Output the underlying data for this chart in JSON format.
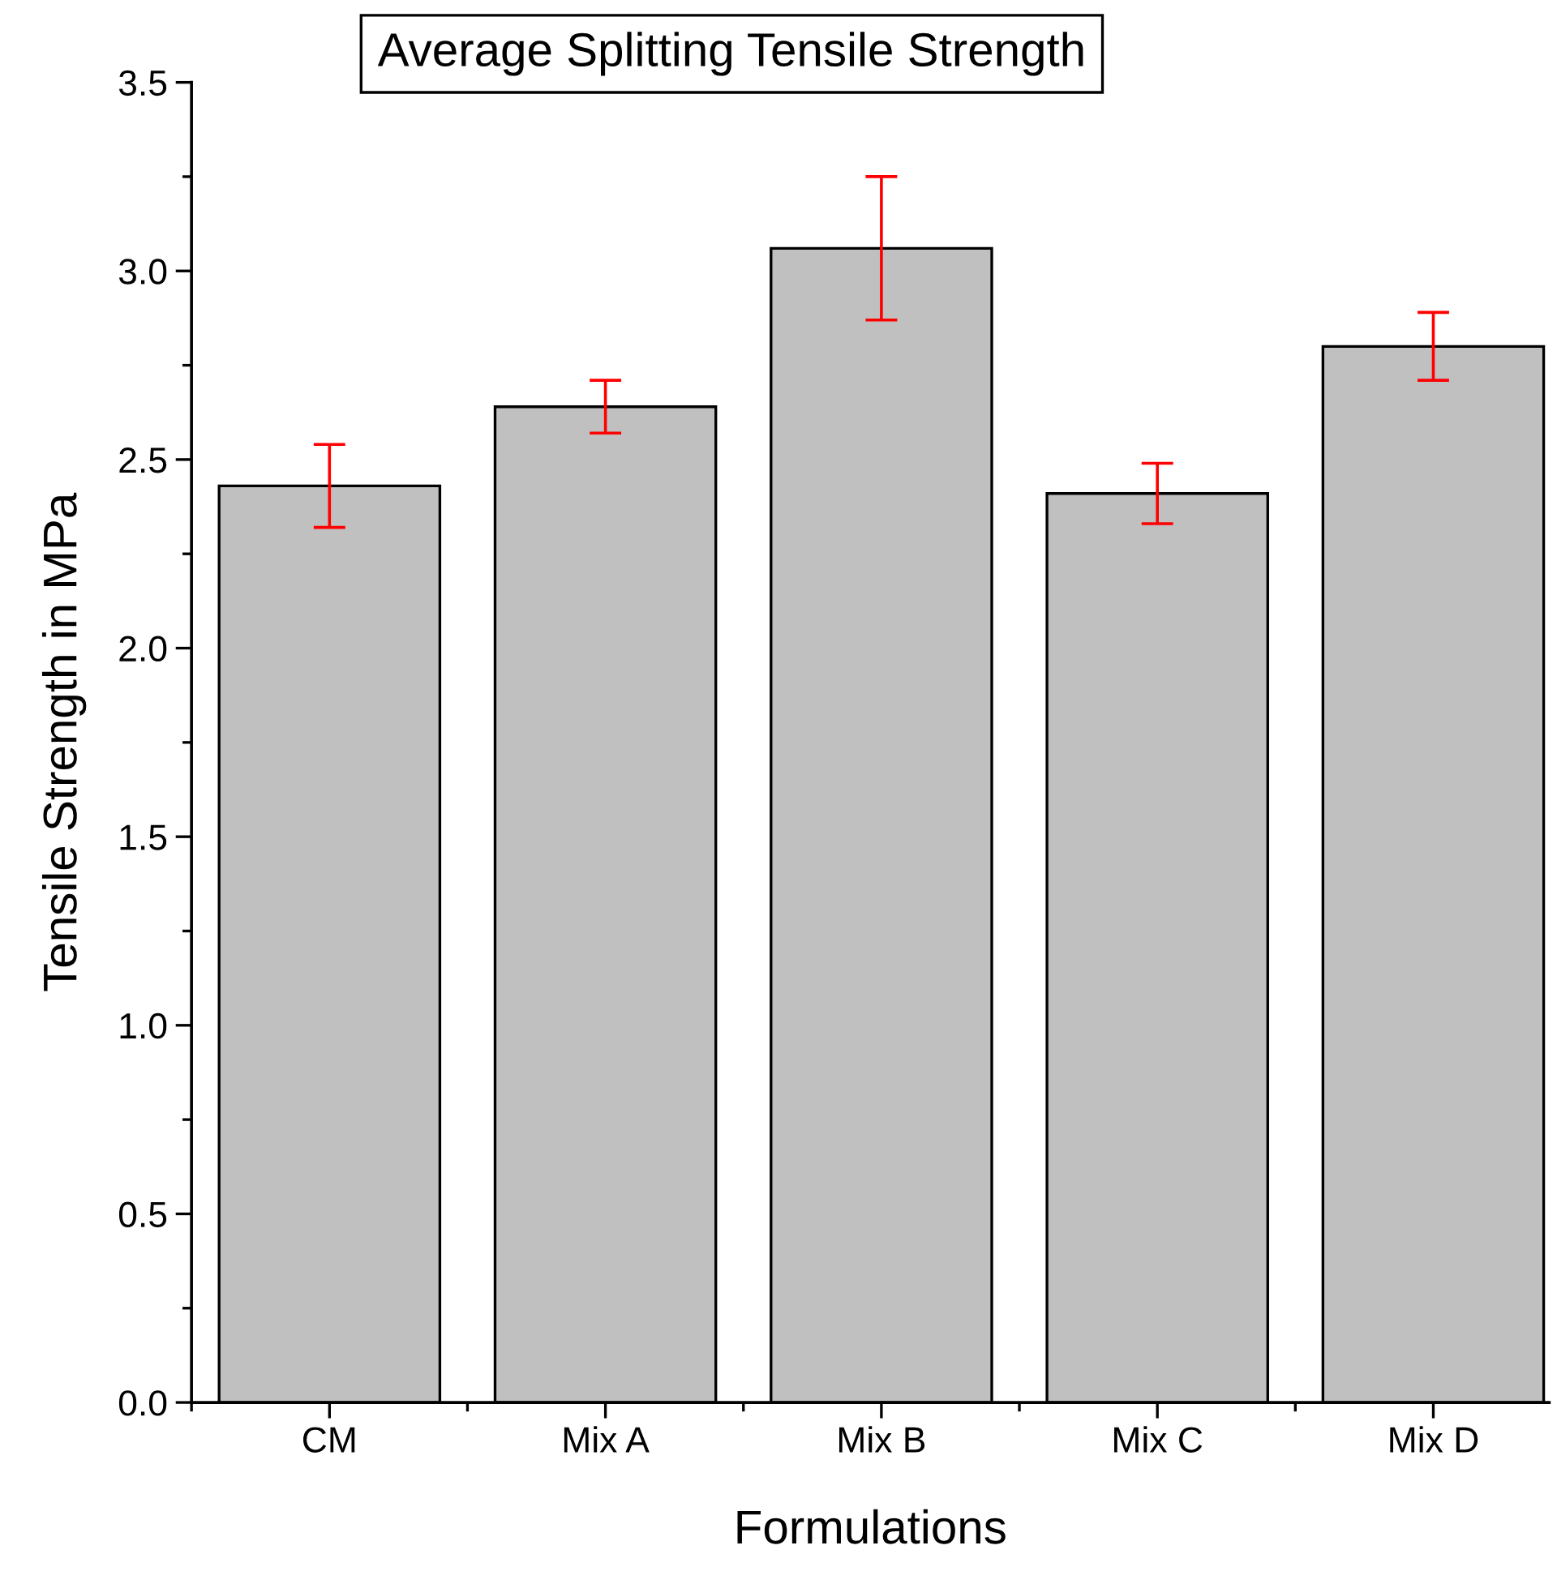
{
  "chart_data": {
    "type": "bar",
    "title": "Average Splitting Tensile Strength",
    "xlabel": "Formulations",
    "ylabel": "Tensile Strength in MPa",
    "categories": [
      "CM",
      "Mix A",
      "Mix B",
      "Mix C",
      "Mix D"
    ],
    "values": [
      2.43,
      2.64,
      3.06,
      2.41,
      2.8
    ],
    "errors": [
      0.11,
      0.07,
      0.19,
      0.08,
      0.09
    ],
    "color": "#c0c0c0",
    "ylim": [
      0,
      3.5
    ],
    "yticks": [
      {
        "value": 0,
        "label": "0.0"
      },
      0.5,
      {
        "value": 1,
        "label": "1.0"
      },
      1.5,
      {
        "value": 2,
        "label": "2.0"
      },
      2.5,
      {
        "value": 3,
        "label": "3.0"
      },
      3.5
    ],
    "grid": false
  }
}
